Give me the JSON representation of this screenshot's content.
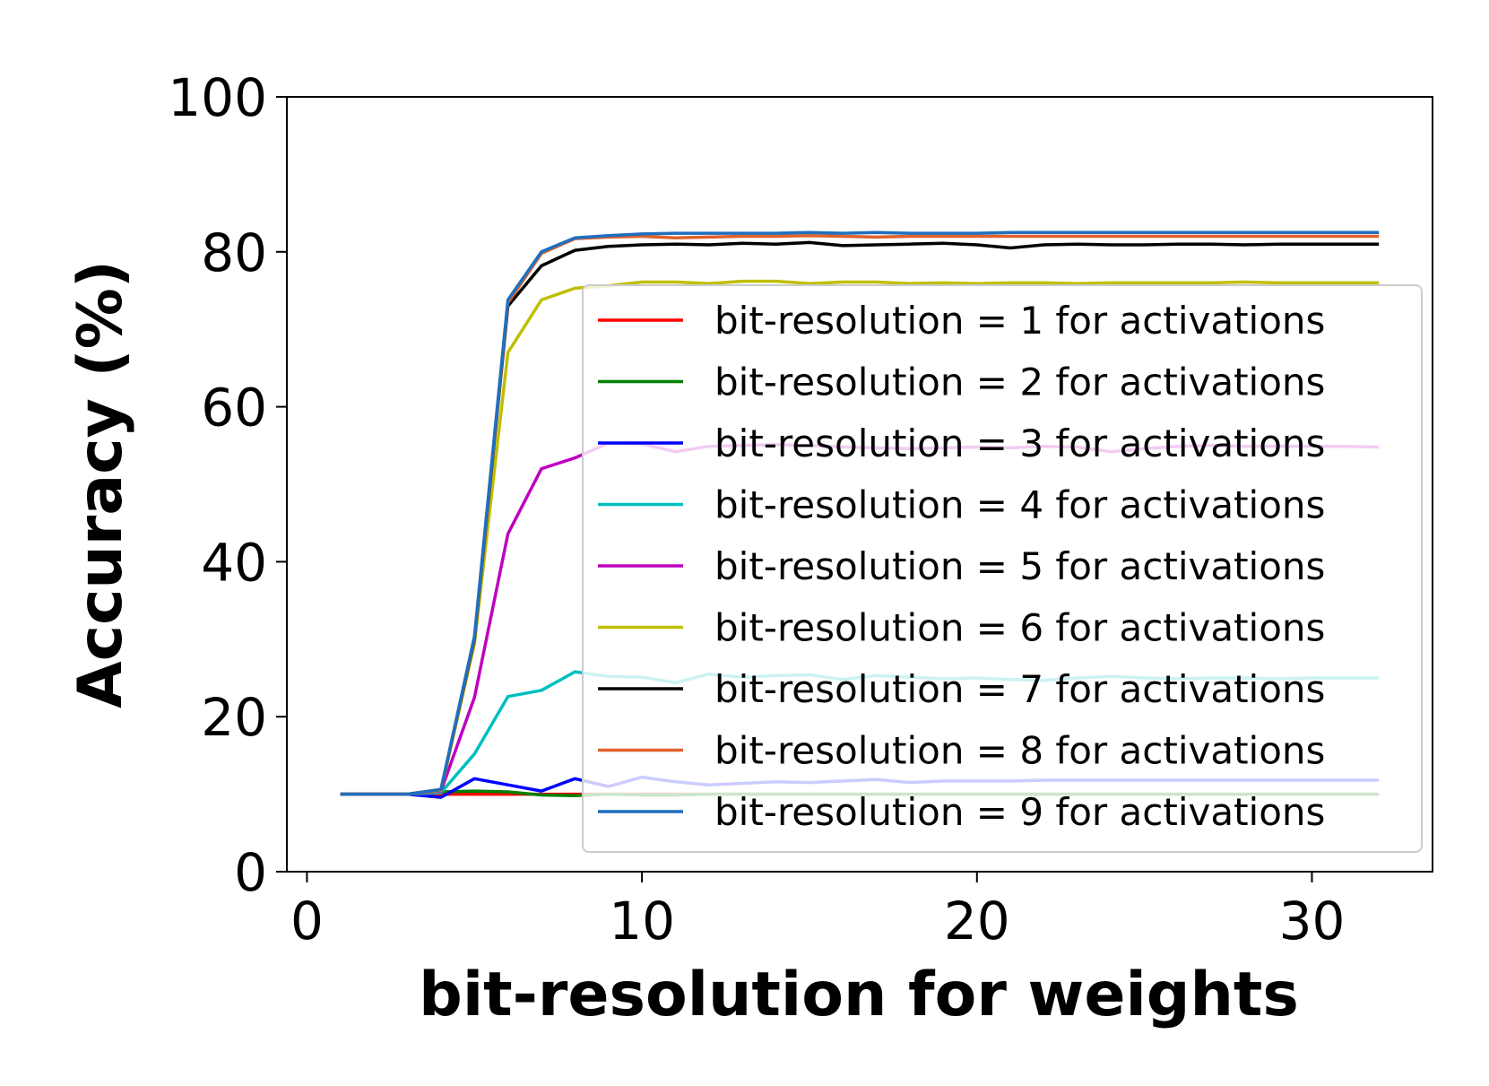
{
  "chart_data": {
    "type": "line",
    "title": "",
    "xlabel": "bit-resolution for weights",
    "ylabel": "Accuracy (%)",
    "xlim": [
      -0.6,
      33.6
    ],
    "ylim": [
      0,
      100
    ],
    "xticks": [
      0,
      10,
      20,
      30
    ],
    "yticks": [
      0,
      20,
      40,
      60,
      80,
      100
    ],
    "grid": false,
    "legend_position": "right",
    "x": [
      1,
      2,
      3,
      4,
      5,
      6,
      7,
      8,
      9,
      10,
      11,
      12,
      13,
      14,
      15,
      16,
      17,
      18,
      19,
      20,
      21,
      22,
      23,
      24,
      25,
      26,
      27,
      28,
      29,
      30,
      31,
      32
    ],
    "series": [
      {
        "name": "bit-resolution = 1 for activations",
        "color": "#ff0000",
        "values": [
          10,
          10,
          10,
          10,
          10,
          10,
          10,
          10,
          10,
          10,
          10,
          10,
          10,
          10,
          10,
          10,
          10,
          10,
          10,
          10,
          10,
          10,
          10,
          10,
          10,
          10,
          10,
          10,
          10,
          10,
          10,
          10
        ]
      },
      {
        "name": "bit-resolution = 2 for activations",
        "color": "#008000",
        "values": [
          10,
          10,
          10,
          10.3,
          10.4,
          10.3,
          9.9,
          9.8,
          10,
          9.9,
          9.9,
          10,
          10,
          10,
          10,
          10,
          10,
          10,
          10,
          10,
          10,
          10,
          10,
          10,
          10,
          10,
          10,
          10,
          10,
          10,
          10,
          10
        ]
      },
      {
        "name": "bit-resolution = 3 for activations",
        "color": "#0000ff",
        "values": [
          10,
          10,
          10,
          9.6,
          12,
          11.2,
          10.4,
          12,
          11,
          12.2,
          11.6,
          11.2,
          11.4,
          11.6,
          11.5,
          11.7,
          11.9,
          11.5,
          11.7,
          11.7,
          11.7,
          11.8,
          11.8,
          11.8,
          11.8,
          11.8,
          11.8,
          11.8,
          11.8,
          11.8,
          11.8,
          11.8
        ]
      },
      {
        "name": "bit-resolution = 4 for activations",
        "color": "#00bfbf",
        "values": [
          10,
          10,
          10,
          10.2,
          15.2,
          22.6,
          23.4,
          25.8,
          25.2,
          25.1,
          24.4,
          25.5,
          25.1,
          25.3,
          25.4,
          24.8,
          25.3,
          25.1,
          24.9,
          25,
          24.8,
          24.7,
          25,
          25.2,
          25,
          24.9,
          25,
          25,
          24.9,
          25,
          25,
          25
        ]
      },
      {
        "name": "bit-resolution = 5 for activations",
        "color": "#bf00bf",
        "values": [
          10,
          10,
          10,
          10.4,
          22.5,
          43.6,
          52,
          53.4,
          55.3,
          55.2,
          54.2,
          54.9,
          55,
          55.1,
          55,
          54.8,
          54.7,
          54.6,
          54.7,
          54.8,
          54.7,
          54.9,
          54.8,
          54.2,
          54.6,
          54.9,
          55,
          54.9,
          54.9,
          54.9,
          54.9,
          54.8
        ]
      },
      {
        "name": "bit-resolution = 6 for activations",
        "color": "#bfbf00",
        "values": [
          10,
          10,
          10,
          10.5,
          29.5,
          67,
          73.8,
          75.3,
          75.6,
          76.1,
          76.1,
          75.9,
          76.2,
          76.2,
          75.9,
          76.1,
          76.1,
          75.9,
          76,
          75.9,
          76,
          76,
          75.9,
          76,
          76,
          76,
          76,
          76.1,
          76,
          76,
          76,
          76
        ]
      },
      {
        "name": "bit-resolution = 7 for activations",
        "color": "#000000",
        "values": [
          10,
          10,
          10,
          10.6,
          30,
          73,
          78.2,
          80.2,
          80.7,
          80.9,
          81,
          80.9,
          81.1,
          81,
          81.2,
          80.8,
          80.9,
          81,
          81.1,
          80.9,
          80.5,
          80.9,
          81,
          80.9,
          80.9,
          81,
          81,
          80.9,
          81,
          81,
          81,
          81
        ]
      },
      {
        "name": "bit-resolution = 8 for activations",
        "color": "#e0622b",
        "values": [
          10,
          10,
          10,
          10.6,
          30.2,
          73.4,
          79.8,
          81.7,
          81.9,
          82,
          81.8,
          81.9,
          82,
          82,
          82.1,
          82,
          81.9,
          82,
          82,
          82,
          82,
          82,
          82,
          82,
          82,
          82,
          82,
          82,
          82,
          82,
          82,
          82
        ]
      },
      {
        "name": "bit-resolution = 9 for activations",
        "color": "#1f6fbf",
        "values": [
          10,
          10,
          10,
          10.6,
          30.4,
          73.8,
          80,
          81.8,
          82.1,
          82.3,
          82.4,
          82.4,
          82.4,
          82.4,
          82.5,
          82.4,
          82.5,
          82.4,
          82.4,
          82.4,
          82.5,
          82.5,
          82.5,
          82.5,
          82.5,
          82.5,
          82.5,
          82.5,
          82.5,
          82.5,
          82.5,
          82.5
        ]
      }
    ]
  }
}
